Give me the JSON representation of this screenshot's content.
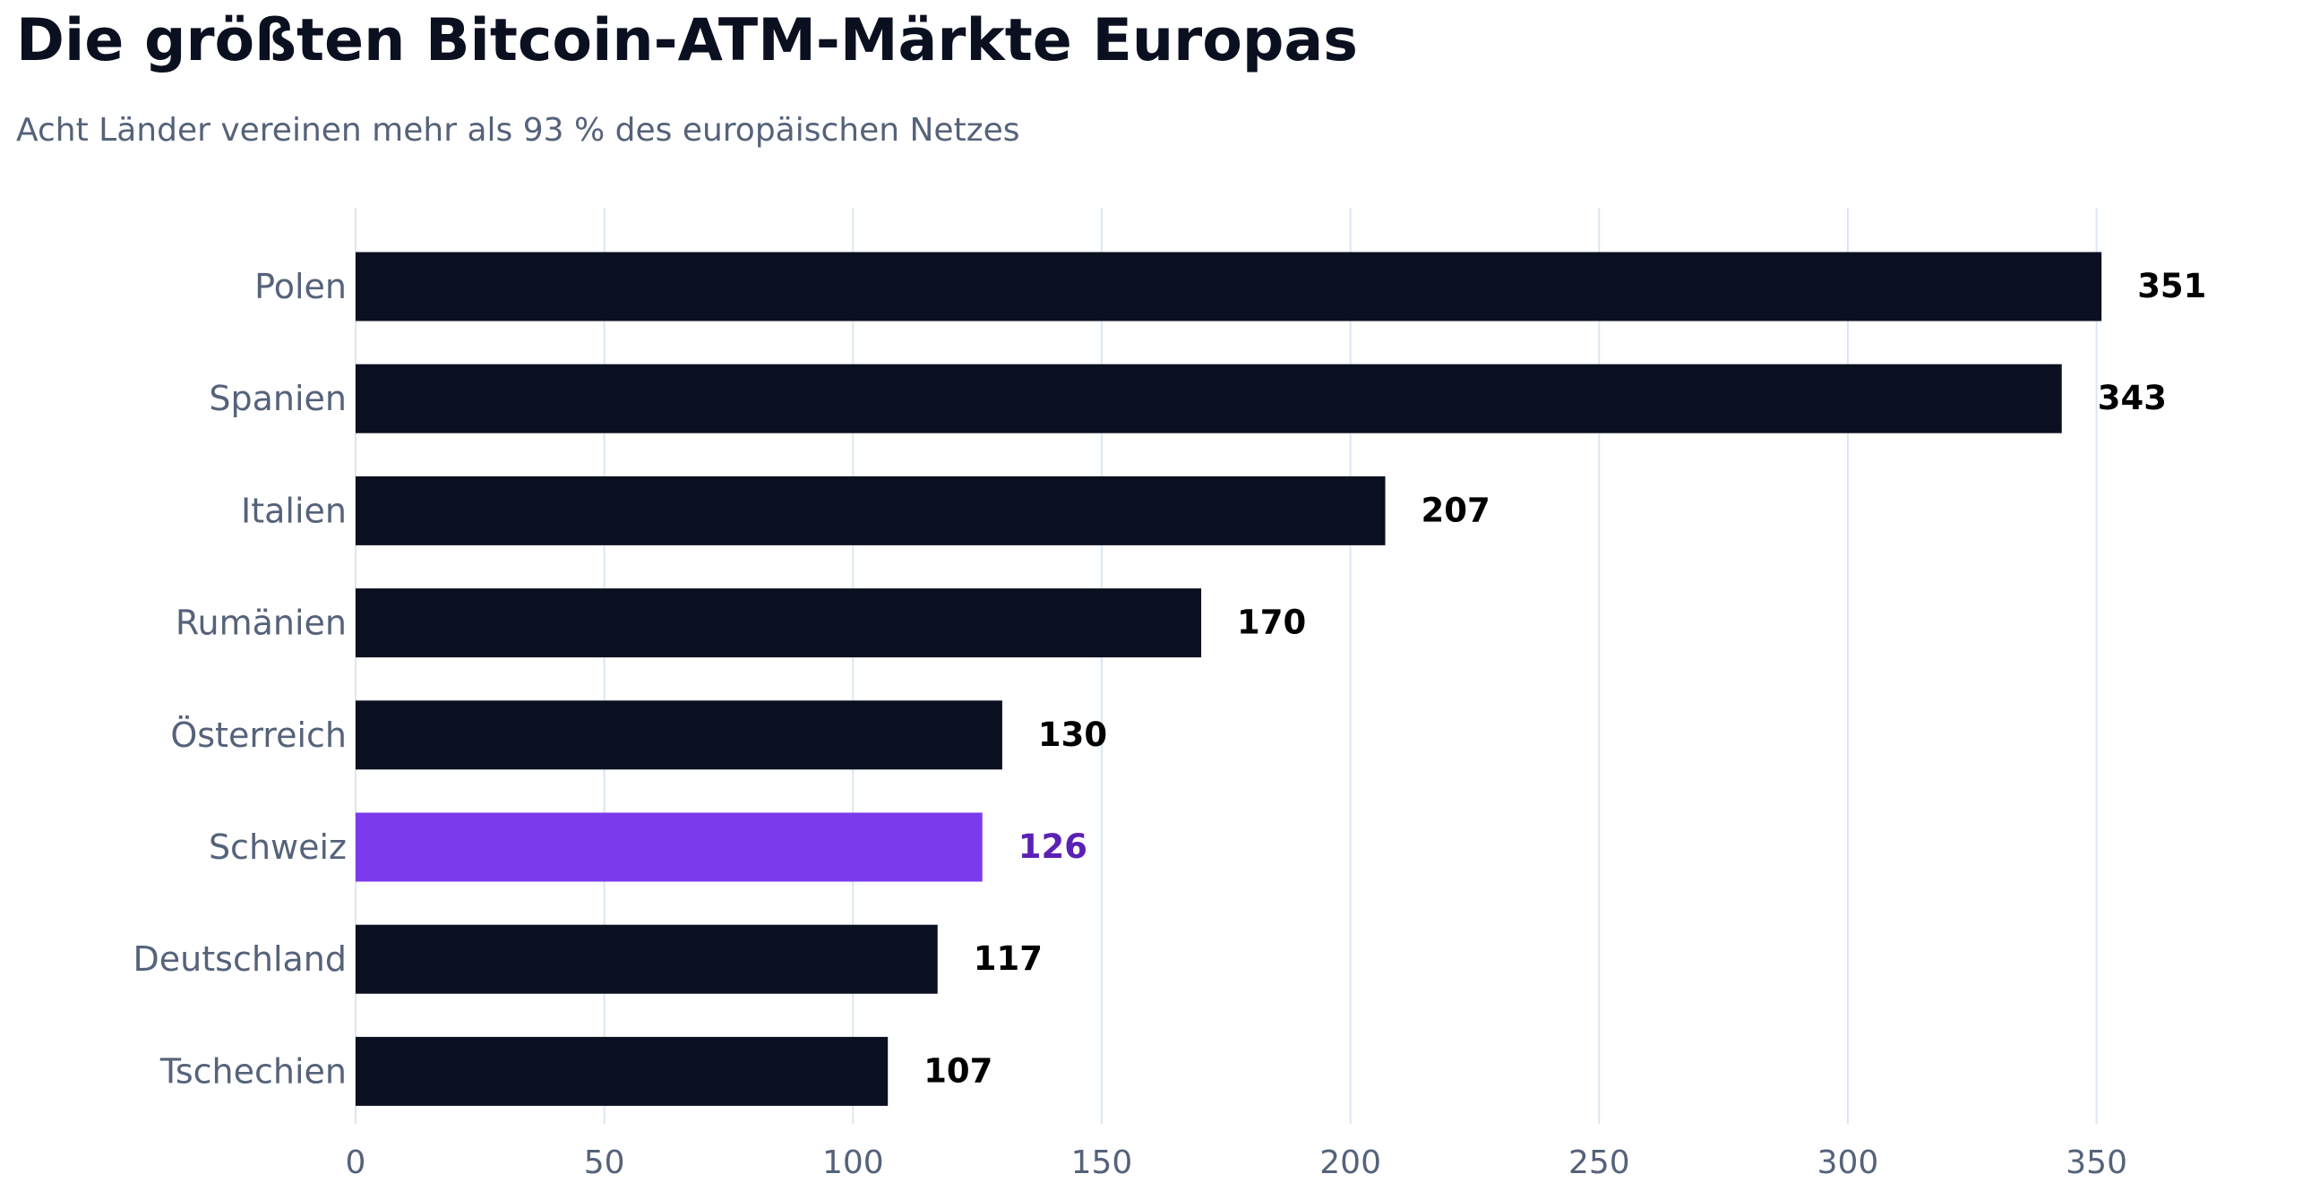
{
  "colors": {
    "bar": "#0b1020",
    "highlight_bar": "#7c3aed",
    "highlight_label": "#5b21b6",
    "value_label": "#000000",
    "tick_text": "#55627a",
    "grid": "#dce6f2",
    "title": "#0b1020",
    "subtitle": "#55627a"
  },
  "chart_data": {
    "type": "bar",
    "orientation": "horizontal",
    "title": "Die größten Bitcoin-ATM-Märkte Europas",
    "subtitle": "Acht Länder vereinen mehr als 93 % des europäischen Netzes",
    "categories": [
      "Polen",
      "Spanien",
      "Italien",
      "Rumänien",
      "Österreich",
      "Schweiz",
      "Deutschland",
      "Tschechien"
    ],
    "values": [
      351,
      343,
      207,
      170,
      130,
      126,
      117,
      107
    ],
    "value_labels": [
      "351",
      "343",
      "207",
      "170",
      "130",
      "126",
      "117",
      "107"
    ],
    "highlight": "Schweiz",
    "xlim": [
      0,
      385
    ],
    "xticks": [
      0,
      50,
      100,
      150,
      200,
      250,
      300,
      350
    ],
    "xtick_labels": [
      "0",
      "50",
      "100",
      "150",
      "200",
      "250",
      "300",
      "350"
    ],
    "grid": "vertical",
    "xlabel": "",
    "ylabel": ""
  }
}
